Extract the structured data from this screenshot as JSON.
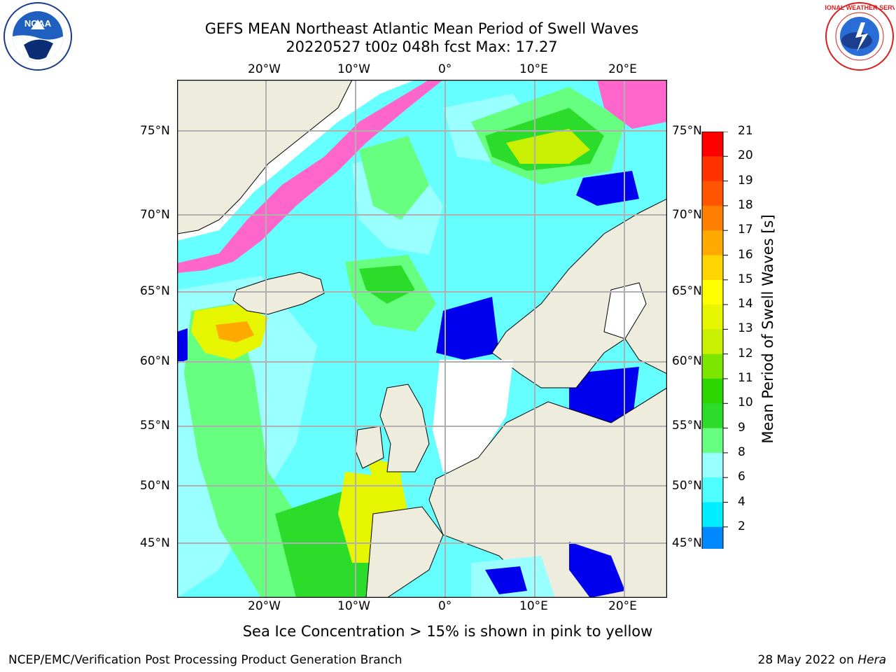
{
  "title": {
    "line1": "GEFS MEAN Northeast Atlantic Mean Period of Swell Waves",
    "line2": "20220527 t00z 048h fcst   Max: 17.27"
  },
  "axes": {
    "lon_labels": [
      "20°W",
      "10°W",
      "0°",
      "10°E",
      "20°E"
    ],
    "lat_labels": [
      "75°N",
      "70°N",
      "65°N",
      "60°N",
      "55°N",
      "50°N",
      "45°N"
    ]
  },
  "colorbar": {
    "label": "Mean Period of Swell Waves [s]",
    "ticks": [
      "21",
      "20",
      "19",
      "18",
      "17",
      "16",
      "15",
      "14",
      "13",
      "12",
      "11",
      "10",
      "9",
      "8",
      "6",
      "4",
      "2"
    ],
    "colors": [
      "#ff0000",
      "#ff3300",
      "#ff5500",
      "#ff8000",
      "#ffaa00",
      "#ffd400",
      "#ffff00",
      "#e6f500",
      "#c8f000",
      "#7ce600",
      "#2ad500",
      "#2bdc2b",
      "#66ff80",
      "#99ffff",
      "#4dffff",
      "#00eeff",
      "#0088ff"
    ],
    "under_color": "#0000ee"
  },
  "note": "Sea Ice Concentration > 15% is shown in pink to yellow",
  "footer": {
    "left": "NCEP/EMC/Verification Post Processing Product Generation Branch",
    "date": "28 May 2022 on ",
    "host": "Hera"
  },
  "logos": {
    "noaa": "NOAA",
    "nws": "NATIONAL WEATHER SERVICE"
  },
  "map_colors": {
    "land": "#eeecdc",
    "ocean_mid": "#66ffff",
    "ocean_light": "#99ffff",
    "ocean_green": "#2ad500",
    "ocean_lightgreen": "#66ff80",
    "ocean_yellow": "#e6f500",
    "ocean_orange": "#ffaa00",
    "ocean_blue": "#0000ee",
    "ice_pink": "#ff66cc",
    "grid": "#b0b0b0"
  }
}
